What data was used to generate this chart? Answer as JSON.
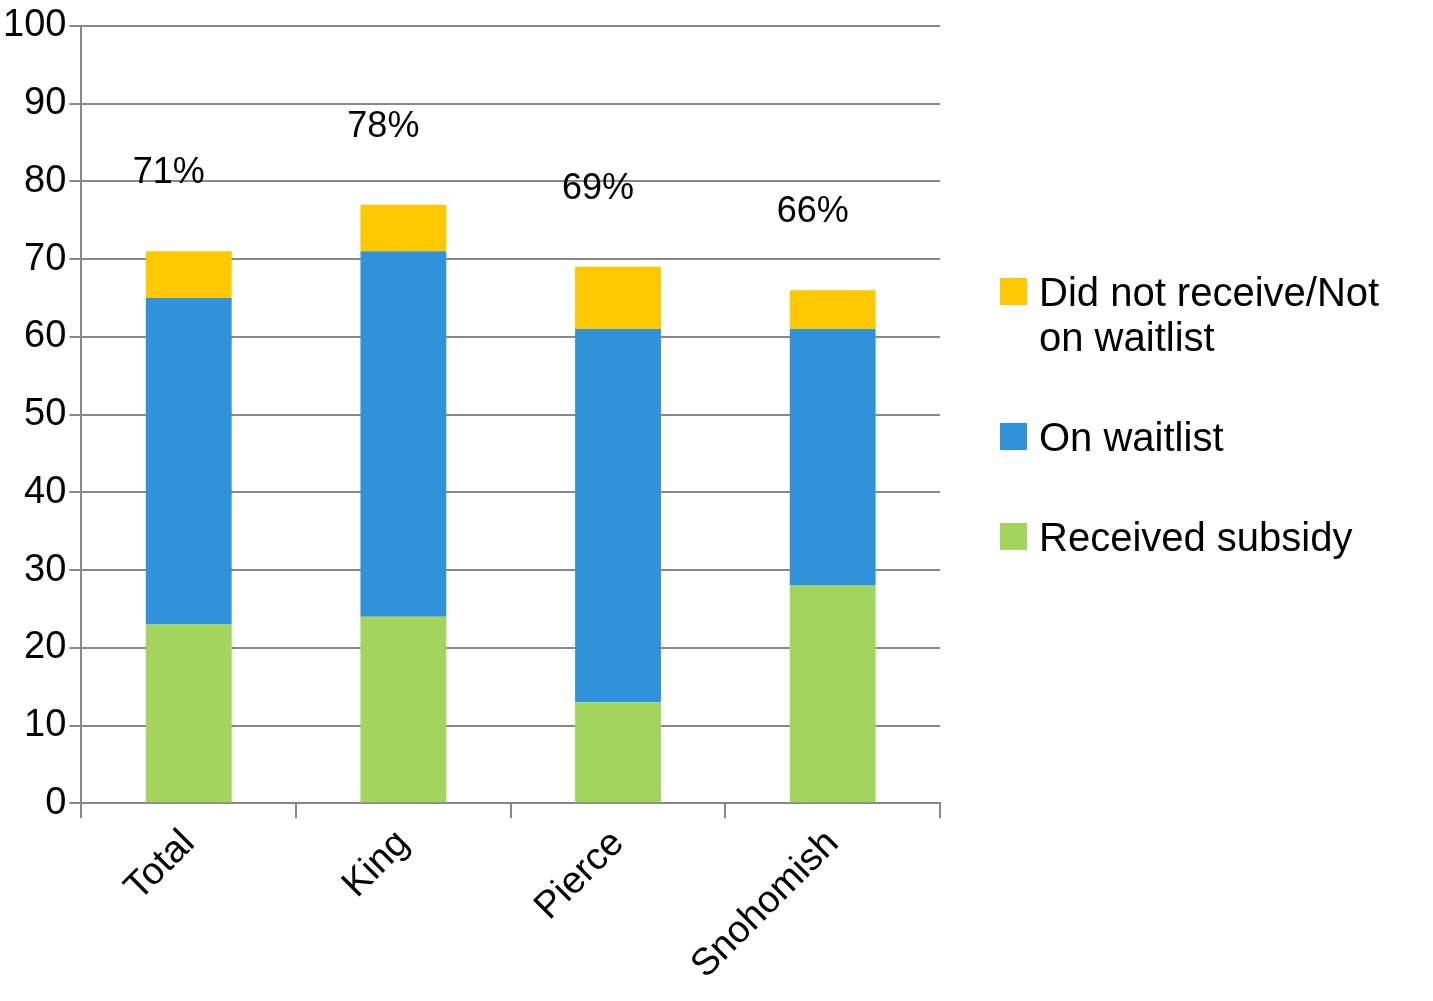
{
  "chart_data": {
    "type": "bar",
    "stacked": true,
    "categories": [
      "Total",
      "King",
      "Pierce",
      "Snohomish"
    ],
    "series": [
      {
        "name": "Received subsidy",
        "color": "#a2d45e",
        "values": [
          23,
          24,
          13,
          28
        ]
      },
      {
        "name": "On waitlist",
        "color": "#3192dc",
        "values": [
          42,
          47,
          48,
          33
        ]
      },
      {
        "name": "Did not receive/Not on waitlist",
        "color": "#ffc800",
        "values": [
          6,
          6,
          8,
          5
        ]
      }
    ],
    "totals": [
      "71%",
      "78%",
      "69%",
      "66%"
    ],
    "ylim": [
      0,
      100
    ],
    "yticks": [
      0,
      10,
      20,
      30,
      40,
      50,
      60,
      70,
      80,
      90,
      100
    ],
    "grid": "y",
    "legend": "right"
  }
}
